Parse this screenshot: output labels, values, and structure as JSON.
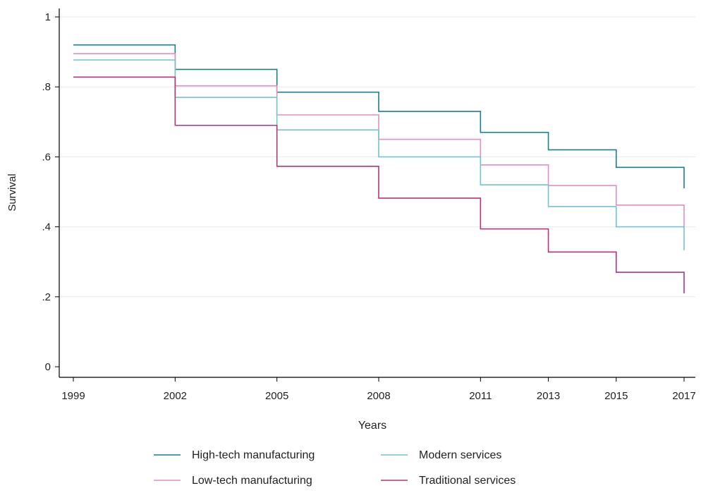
{
  "chart_data": {
    "type": "line",
    "subtype": "step",
    "title": "",
    "xlabel": "Years",
    "ylabel": "Survival",
    "x": [
      1999,
      2002,
      2005,
      2008,
      2011,
      2013,
      2015,
      2017
    ],
    "xticks": [
      "1999",
      "2002",
      "2005",
      "2008",
      "2011",
      "2013",
      "2015",
      "2017"
    ],
    "yticks": [
      {
        "value": 0,
        "label": "0"
      },
      {
        "value": 0.2,
        "label": ".2"
      },
      {
        "value": 0.4,
        "label": ".4"
      },
      {
        "value": 0.6,
        "label": ".6"
      },
      {
        "value": 0.8,
        "label": ".8"
      },
      {
        "value": 1,
        "label": "1"
      }
    ],
    "ylim": [
      0,
      1
    ],
    "grid": "horizontal",
    "legend_position": "bottom",
    "series": [
      {
        "name": "High-tech manufacturing",
        "color": "#1a7f8e",
        "values": [
          0.92,
          0.85,
          0.785,
          0.73,
          0.67,
          0.62,
          0.57,
          0.51
        ]
      },
      {
        "name": "Low-tech manufacturing",
        "color": "#e08fc6",
        "values": [
          0.895,
          0.803,
          0.72,
          0.65,
          0.577,
          0.518,
          0.462,
          0.4
        ]
      },
      {
        "name": "Modern services",
        "color": "#74c3d0",
        "values": [
          0.877,
          0.77,
          0.677,
          0.6,
          0.52,
          0.458,
          0.4,
          0.333
        ]
      },
      {
        "name": "Traditional services",
        "color": "#b5357b",
        "values": [
          0.828,
          0.69,
          0.573,
          0.482,
          0.394,
          0.328,
          0.27,
          0.21
        ]
      }
    ],
    "legend_order": [
      "High-tech manufacturing",
      "Modern services",
      "Low-tech manufacturing",
      "Traditional services"
    ]
  }
}
